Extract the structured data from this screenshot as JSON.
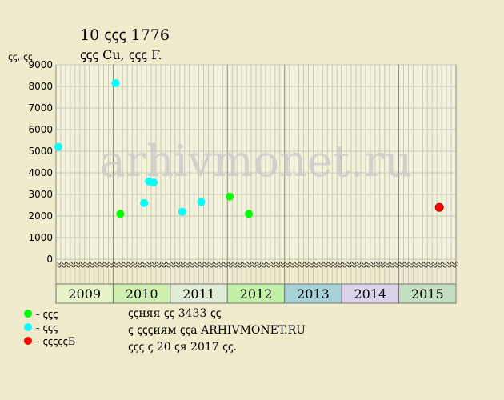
{
  "header": {
    "title": "10 ꞔꞔꞔ 1776",
    "subtitle": "ꞔꞔꞔ Cu, ꞔꞔꞔ F.",
    "y_unit": "ꞔꞔ, ꞔꞔ"
  },
  "watermark": "arhivmonet.ru",
  "legend": [
    {
      "label": "- ꞔꞔꞔ",
      "color": "#00FF00"
    },
    {
      "label": "- ꞔꞔꞔ",
      "color": "#00FFFF"
    },
    {
      "label": "- ꞔꞔꞔꞔꞔБ",
      "color": "#FF0000"
    }
  ],
  "info": {
    "line1": "ꞔꞔняя ꞔꞔ 3433 ꞔꞔ",
    "line2": "ꞔ ꞔꞔꞔиям ꞔꞔа ARHIVMONET.RU",
    "line3": "ꞔꞔꞔ ꞔ 20 ꞔя 2017 ꞔꞔ."
  },
  "chart_data": {
    "type": "scatter",
    "ylim": [
      0,
      9000
    ],
    "yticks": [
      0,
      1000,
      2000,
      3000,
      4000,
      5000,
      6000,
      7000,
      8000,
      9000
    ],
    "years": [
      {
        "label": "2009",
        "color": "#E6F2C8"
      },
      {
        "label": "2010",
        "color": "#CFEFB0"
      },
      {
        "label": "2011",
        "color": "#E0ECD6"
      },
      {
        "label": "2012",
        "color": "#C2F0A6"
      },
      {
        "label": "2013",
        "color": "#A8D2DA"
      },
      {
        "label": "2014",
        "color": "#DCD3EA"
      },
      {
        "label": "2015",
        "color": "#C4DEC2"
      }
    ],
    "month_labels": [
      "ꞔꞔ",
      "ꞔꞔ",
      "ꞔꞔ",
      "ꞔꞔ",
      "ꞔꞔ",
      "ꞔꞔ"
    ],
    "series": [
      {
        "color": "#00FF00",
        "points": [
          {
            "x": "2010-02",
            "y": 2100
          },
          {
            "x": "2012-01",
            "y": 2900
          },
          {
            "x": "2012-05",
            "y": 2100
          }
        ]
      },
      {
        "color": "#00FFFF",
        "points": [
          {
            "x": "2009-01",
            "y": 5200
          },
          {
            "x": "2010-01",
            "y": 8150
          },
          {
            "x": "2010-07",
            "y": 2600
          },
          {
            "x": "2010-08",
            "y": 3600
          },
          {
            "x": "2010-09",
            "y": 3550
          },
          {
            "x": "2011-03",
            "y": 2200
          },
          {
            "x": "2011-07",
            "y": 2650
          }
        ]
      },
      {
        "color": "#FF0000",
        "points": [
          {
            "x": "2015-09",
            "y": 2400
          }
        ]
      }
    ]
  }
}
